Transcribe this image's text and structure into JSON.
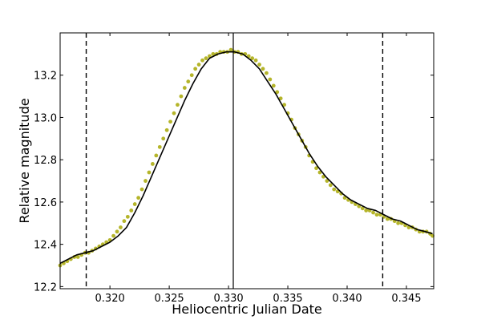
{
  "chart_data": {
    "type": "scatter",
    "title": "",
    "xlabel": "Heliocentric Julian Date",
    "ylabel": "Relative magnitude",
    "xlim": [
      0.3158,
      0.3473
    ],
    "ylim": [
      13.4,
      12.19
    ],
    "y_inverted": true,
    "grid": false,
    "x_ticks": [
      {
        "value": 0.32,
        "label": "0.320"
      },
      {
        "value": 0.325,
        "label": "0.325"
      },
      {
        "value": 0.33,
        "label": "0.330"
      },
      {
        "value": 0.335,
        "label": "0.335"
      },
      {
        "value": 0.34,
        "label": "0.340"
      },
      {
        "value": 0.345,
        "label": "0.345"
      }
    ],
    "y_ticks": [
      {
        "value": 12.2,
        "label": "12.2"
      },
      {
        "value": 12.4,
        "label": "12.4"
      },
      {
        "value": 12.6,
        "label": "12.6"
      },
      {
        "value": 12.8,
        "label": "12.8"
      },
      {
        "value": 13.0,
        "label": "13.0"
      },
      {
        "value": 13.2,
        "label": "13.2"
      }
    ],
    "series": [
      {
        "kind": "points",
        "color": "#b5b52a",
        "x": [
          0.3158,
          0.3161,
          0.3164,
          0.3167,
          0.317,
          0.3173,
          0.3176,
          0.3179,
          0.3182,
          0.3185,
          0.3188,
          0.3191,
          0.3194,
          0.3197,
          0.32,
          0.3203,
          0.3206,
          0.3209,
          0.3212,
          0.3215,
          0.3218,
          0.3221,
          0.3224,
          0.3227,
          0.323,
          0.3233,
          0.3236,
          0.3239,
          0.3242,
          0.3245,
          0.3248,
          0.3251,
          0.3254,
          0.3257,
          0.326,
          0.3263,
          0.3266,
          0.3269,
          0.3272,
          0.3275,
          0.3278,
          0.3281,
          0.3284,
          0.3287,
          0.329,
          0.3293,
          0.3296,
          0.3299,
          0.3302,
          0.3305,
          0.3308,
          0.3311,
          0.3314,
          0.3317,
          0.332,
          0.3323,
          0.3326,
          0.3329,
          0.3332,
          0.3335,
          0.3338,
          0.3341,
          0.3344,
          0.3347,
          0.335,
          0.3353,
          0.3356,
          0.3359,
          0.3362,
          0.3365,
          0.3368,
          0.3371,
          0.3374,
          0.3377,
          0.338,
          0.3383,
          0.3386,
          0.3389,
          0.3392,
          0.3395,
          0.3398,
          0.3401,
          0.3404,
          0.3407,
          0.341,
          0.3413,
          0.3416,
          0.3419,
          0.3422,
          0.3425,
          0.3428,
          0.3431,
          0.3434,
          0.3437,
          0.344,
          0.3443,
          0.3446,
          0.3449,
          0.3452,
          0.3455,
          0.3458,
          0.3461,
          0.3464,
          0.3467,
          0.347,
          0.3472
        ],
        "y": [
          12.3,
          12.31,
          12.32,
          12.33,
          12.34,
          12.34,
          12.35,
          12.36,
          12.36,
          12.37,
          12.38,
          12.39,
          12.4,
          12.41,
          12.42,
          12.44,
          12.46,
          12.48,
          12.51,
          12.53,
          12.56,
          12.59,
          12.62,
          12.66,
          12.7,
          12.74,
          12.78,
          12.82,
          12.86,
          12.9,
          12.94,
          12.98,
          13.02,
          13.06,
          13.1,
          13.14,
          13.17,
          13.2,
          13.23,
          13.25,
          13.27,
          13.28,
          13.29,
          13.3,
          13.3,
          13.31,
          13.31,
          13.31,
          13.32,
          13.31,
          13.31,
          13.3,
          13.3,
          13.29,
          13.28,
          13.27,
          13.25,
          13.23,
          13.21,
          13.18,
          13.15,
          13.12,
          13.09,
          13.06,
          13.02,
          12.99,
          12.95,
          12.92,
          12.89,
          12.86,
          12.82,
          12.79,
          12.76,
          12.74,
          12.72,
          12.7,
          12.68,
          12.66,
          12.65,
          12.64,
          12.62,
          12.61,
          12.6,
          12.59,
          12.58,
          12.57,
          12.56,
          12.56,
          12.55,
          12.54,
          12.54,
          12.53,
          12.52,
          12.52,
          12.51,
          12.5,
          12.5,
          12.49,
          12.48,
          12.48,
          12.47,
          12.46,
          12.46,
          12.46,
          12.45,
          12.44
        ]
      },
      {
        "kind": "line",
        "color": "#000000",
        "x": [
          0.3158,
          0.3165,
          0.3172,
          0.3179,
          0.3186,
          0.3193,
          0.32,
          0.3207,
          0.3214,
          0.3221,
          0.3228,
          0.3235,
          0.3242,
          0.3249,
          0.3256,
          0.3263,
          0.327,
          0.3277,
          0.3284,
          0.3291,
          0.3298,
          0.3305,
          0.3312,
          0.3319,
          0.3326,
          0.3333,
          0.334,
          0.3347,
          0.3354,
          0.3361,
          0.3368,
          0.3375,
          0.3382,
          0.3389,
          0.3396,
          0.3403,
          0.341,
          0.3417,
          0.3424,
          0.3431,
          0.3438,
          0.3445,
          0.3452,
          0.3459,
          0.3466,
          0.3472
        ],
        "y": [
          12.31,
          12.33,
          12.35,
          12.36,
          12.37,
          12.39,
          12.41,
          12.44,
          12.48,
          12.55,
          12.63,
          12.72,
          12.81,
          12.9,
          12.99,
          13.08,
          13.16,
          13.23,
          13.28,
          13.3,
          13.31,
          13.31,
          13.3,
          13.27,
          13.23,
          13.17,
          13.11,
          13.04,
          12.97,
          12.9,
          12.83,
          12.77,
          12.72,
          12.68,
          12.64,
          12.61,
          12.59,
          12.57,
          12.56,
          12.54,
          12.52,
          12.51,
          12.49,
          12.47,
          12.46,
          12.45
        ]
      }
    ],
    "vertical_lines": [
      {
        "x": 0.318,
        "style": "dashed",
        "color": "#000000"
      },
      {
        "x": 0.3304,
        "style": "solid",
        "color": "#000000"
      },
      {
        "x": 0.343,
        "style": "dashed",
        "color": "#000000"
      }
    ]
  }
}
